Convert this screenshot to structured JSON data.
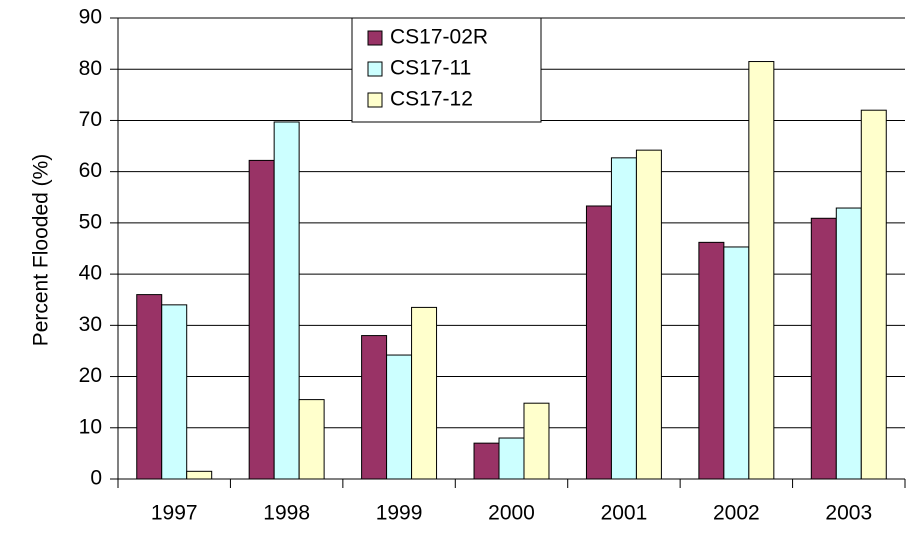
{
  "chart_data": {
    "type": "bar",
    "y_label": "Percent Flooded (%)",
    "categories": [
      "1997",
      "1998",
      "1999",
      "2000",
      "2001",
      "2002",
      "2003"
    ],
    "series": [
      {
        "name": "CS17-02R",
        "color": "#993366",
        "values": [
          36,
          62.2,
          28,
          7,
          53.3,
          46.2,
          50.9
        ]
      },
      {
        "name": "CS17-11",
        "color": "#ccffff",
        "values": [
          34,
          69.7,
          24.2,
          8,
          62.7,
          45.3,
          52.9
        ]
      },
      {
        "name": "CS17-12",
        "color": "#ffffcc",
        "values": [
          1.5,
          15.5,
          33.5,
          14.8,
          64.2,
          81.5,
          72
        ]
      }
    ],
    "ylim": [
      0,
      90
    ],
    "yticks": [
      0,
      10,
      20,
      30,
      40,
      50,
      60,
      70,
      80,
      90
    ],
    "grid": true,
    "legend": "upper center"
  }
}
